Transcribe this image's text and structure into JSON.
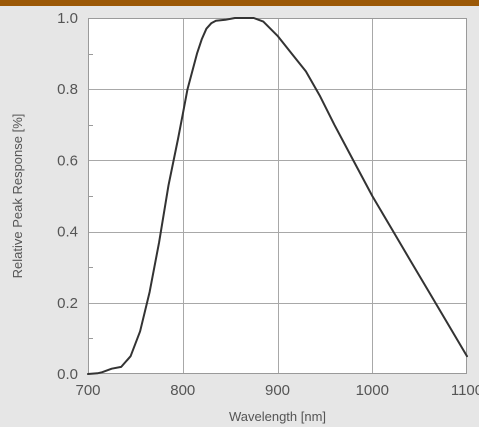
{
  "chart_data": {
    "type": "line",
    "title": "",
    "xlabel": "Wavelength [nm]",
    "ylabel": "Relative Peak Response [%]",
    "xlim": [
      700,
      1100
    ],
    "ylim": [
      0.0,
      1.0
    ],
    "x_ticks": [
      "700",
      "800",
      "900",
      "1000",
      "1100"
    ],
    "y_ticks": [
      "0.0",
      "0.2",
      "0.4",
      "0.6",
      "0.8",
      "1.0"
    ],
    "grid": true,
    "legend": "none",
    "series": [
      {
        "color": "#333333",
        "x": [
          700,
          710,
          715,
          725,
          735,
          745,
          755,
          765,
          775,
          785,
          795,
          800,
          805,
          815,
          820,
          825,
          830,
          835,
          845,
          855,
          865,
          875,
          885,
          900,
          915,
          930,
          945,
          960,
          980,
          1000,
          1020,
          1040,
          1060,
          1080,
          1100
        ],
        "y": [
          0.0,
          0.002,
          0.005,
          0.015,
          0.02,
          0.05,
          0.12,
          0.23,
          0.37,
          0.53,
          0.66,
          0.73,
          0.8,
          0.9,
          0.94,
          0.97,
          0.985,
          0.992,
          0.995,
          1.0,
          1.0,
          1.0,
          0.99,
          0.95,
          0.9,
          0.85,
          0.78,
          0.7,
          0.6,
          0.5,
          0.41,
          0.32,
          0.23,
          0.14,
          0.05
        ]
      }
    ]
  }
}
